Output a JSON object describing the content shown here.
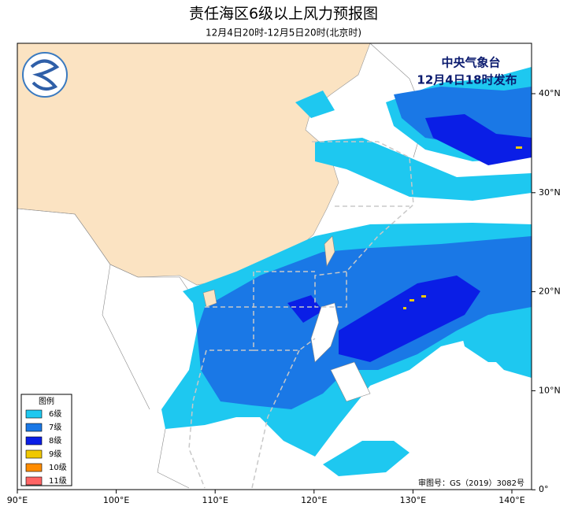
{
  "header": {
    "title": "责任海区6级以上风力预报图",
    "subtitle": "12月4日20时-12月5日20时(北京时)"
  },
  "agency": {
    "name": "中央气象台",
    "issued": "12月4日18时发布"
  },
  "legend": {
    "title": "图例",
    "items": [
      {
        "label": "6级",
        "color": "#1ec8f0"
      },
      {
        "label": "7级",
        "color": "#1a78e6"
      },
      {
        "label": "8级",
        "color": "#0a1ee6"
      },
      {
        "label": "9级",
        "color": "#f0c800"
      },
      {
        "label": "10级",
        "color": "#ff8c00"
      },
      {
        "label": "11级",
        "color": "#ff6464"
      }
    ]
  },
  "axes": {
    "longitude": [
      "90°E",
      "100°E",
      "110°E",
      "120°E",
      "130°E",
      "140°E"
    ],
    "latitude": [
      "40°N",
      "30°N",
      "20°N",
      "10°N",
      "0°"
    ]
  },
  "approval": "审图号：GS（2019）3082号"
}
